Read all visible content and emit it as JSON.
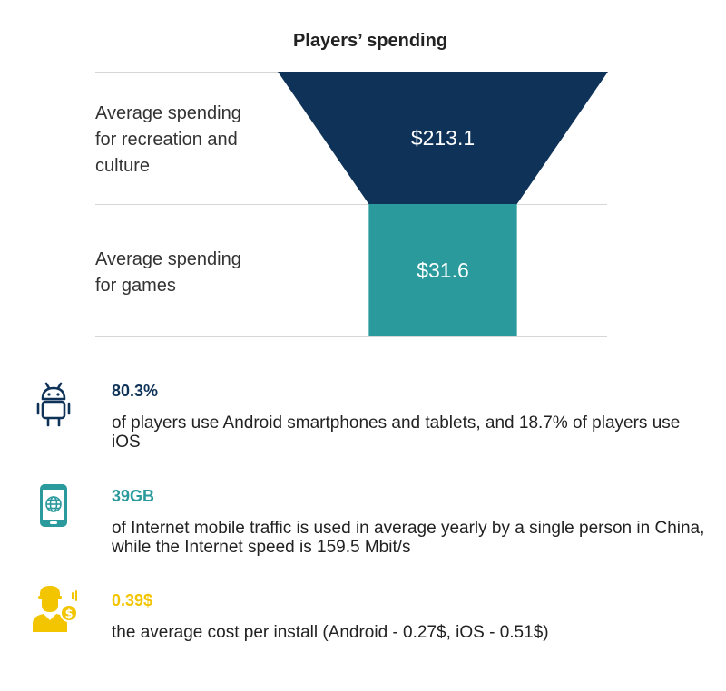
{
  "title": "Players’ spending",
  "chart_data": {
    "type": "funnel",
    "categories": [
      "Average spending for recreation and culture",
      "Average spending for games"
    ],
    "values": [
      213.1,
      31.6
    ],
    "value_labels": [
      "$213.1",
      "$31.6"
    ],
    "colors": [
      "#0f3358",
      "#2a9a9c"
    ],
    "title": "Players’ spending"
  },
  "labels": [
    [
      "Average spending",
      "for recreation and",
      "culture"
    ],
    [
      "Average spending",
      "for games"
    ]
  ],
  "facts": [
    {
      "value": "80.3%",
      "color": "#0f3358",
      "icon": "android-icon",
      "text": "of players use Android smartphones and tablets, and 18.7% of players use iOS"
    },
    {
      "value": "39GB",
      "color": "#2a9a9c",
      "icon": "smartphone-globe-icon",
      "text": "of Internet mobile traffic is used in average yearly by a single person in China, while the Internet speed is 159.5 Mbit/s"
    },
    {
      "value": "0.39$",
      "color": "#f2c500",
      "icon": "person-dollar-icon",
      "text": "the average cost per install (Android - 0.27$, iOS - 0.51$)"
    }
  ]
}
